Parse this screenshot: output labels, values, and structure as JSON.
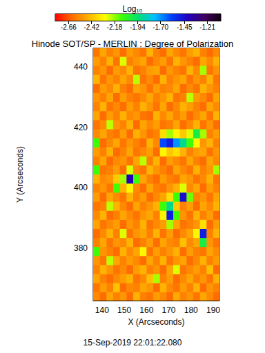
{
  "chart_data": {
    "type": "heatmap",
    "title": "Hinode SOT/SP - MERLIN : Degree of Polarization",
    "x_label": "X (Arcseconds)",
    "y_label": "Y (Arcseconds)",
    "annotation": "15-Sep-2019 22:01:22.080",
    "xlim": [
      136,
      192.8
    ],
    "ylim": [
      362.6,
      446.2
    ],
    "xticks": [
      140,
      150,
      160,
      170,
      180,
      190
    ],
    "yticks": [
      380,
      400,
      420,
      440
    ],
    "x": [
      137.5,
      140.5,
      143.5,
      146.5,
      149.5,
      152.5,
      155.5,
      158.5,
      161.5,
      164.5,
      167.5,
      170.5,
      173.5,
      176.5,
      179.5,
      182.5,
      185.5,
      188.5,
      191.5
    ],
    "y": [
      364,
      367,
      370,
      373,
      376,
      379,
      382,
      385,
      388,
      391,
      394,
      397,
      400,
      403,
      406,
      409,
      412,
      415,
      418,
      421,
      424,
      427,
      430,
      433,
      436,
      439,
      442,
      445
    ],
    "values": [
      [
        -2.55,
        -2.62,
        -2.48,
        -2.57,
        -2.52,
        -2.62,
        -2.45,
        -2.57,
        -2.6,
        -2.5,
        -2.55,
        -2.62,
        -2.47,
        -2.57,
        -2.52,
        -2.6,
        -2.48,
        -2.55,
        -2.62
      ],
      [
        -2.6,
        -2.5,
        -2.57,
        -2.42,
        -2.62,
        -2.55,
        -2.57,
        -2.48,
        -2.52,
        -2.62,
        -2.45,
        -2.55,
        -2.6,
        -2.5,
        -2.57,
        -2.45,
        -2.62,
        -2.52,
        -2.57
      ],
      [
        -2.48,
        -2.57,
        -2.62,
        -2.55,
        -2.5,
        -2.45,
        -2.6,
        -2.55,
        -2.42,
        -2.2,
        -2.57,
        -2.5,
        -2.62,
        -2.55,
        -2.48,
        -2.57,
        -2.52,
        -2.6,
        -2.45
      ],
      [
        -2.57,
        -2.45,
        -2.52,
        -2.6,
        -2.55,
        -2.62,
        -2.5,
        -2.45,
        -2.57,
        -2.52,
        -2.62,
        -2.48,
        -2.25,
        -2.6,
        -2.55,
        -2.5,
        -2.57,
        -2.42,
        -2.62
      ],
      [
        -2.52,
        -2.6,
        -2.22,
        -2.48,
        -2.57,
        -2.5,
        -2.55,
        -2.62,
        -2.48,
        -2.57,
        -2.45,
        -2.6,
        -2.52,
        -2.48,
        -2.62,
        -2.55,
        -2.45,
        -2.57,
        -2.5
      ],
      [
        -2.1,
        -2.52,
        -2.57,
        -2.62,
        -2.45,
        -2.55,
        -2.48,
        -2.3,
        -2.6,
        -2.5,
        -2.57,
        -2.52,
        -2.45,
        -2.62,
        -2.5,
        -2.57,
        -2.6,
        -2.48,
        -2.55
      ],
      [
        -2.57,
        -2.48,
        -2.6,
        -2.52,
        -2.55,
        -2.45,
        -2.62,
        -2.57,
        -2.5,
        -2.62,
        -2.48,
        -2.55,
        -2.57,
        -2.42,
        -2.55,
        -2.48,
        -2.0,
        -2.52,
        -2.6
      ],
      [
        -2.62,
        -2.55,
        -2.45,
        -2.57,
        -2.25,
        -2.6,
        -2.52,
        -2.48,
        -2.57,
        -2.45,
        -2.6,
        -2.5,
        -2.62,
        -2.55,
        -2.48,
        -2.3,
        -1.5,
        -2.57,
        -2.45
      ],
      [
        -2.48,
        -2.6,
        -2.55,
        -2.5,
        -2.62,
        -2.52,
        -2.57,
        -2.45,
        -2.6,
        -2.55,
        -2.5,
        -2.2,
        -2.48,
        -2.6,
        -2.57,
        -2.52,
        -2.35,
        -2.62,
        -2.5
      ],
      [
        -2.55,
        -2.45,
        -2.62,
        -2.57,
        -2.48,
        -2.55,
        -2.6,
        -2.52,
        -2.48,
        -2.57,
        -2.3,
        -1.5,
        -2.1,
        -2.52,
        -2.6,
        -2.45,
        -2.57,
        -2.5,
        -2.62
      ],
      [
        -2.6,
        -2.57,
        -2.22,
        -2.45,
        -2.55,
        -2.62,
        -2.48,
        -2.57,
        -2.52,
        -2.45,
        -2.1,
        -1.9,
        -2.4,
        -2.57,
        -2.5,
        -2.62,
        -2.48,
        -2.55,
        -2.45
      ],
      [
        -2.5,
        -2.62,
        -2.48,
        -2.55,
        -2.6,
        -2.45,
        -2.57,
        -2.5,
        -2.62,
        -2.55,
        -2.48,
        -2.35,
        -2.1,
        -1.45,
        -2.15,
        -2.57,
        -2.52,
        -2.6,
        -2.48
      ],
      [
        -2.57,
        -2.52,
        -2.6,
        -2.1,
        -2.45,
        -2.3,
        -2.55,
        -2.62,
        -2.48,
        -2.57,
        -2.6,
        -2.52,
        -2.45,
        -2.25,
        -2.55,
        -2.48,
        -2.62,
        -2.5,
        -2.57
      ],
      [
        -2.45,
        -2.55,
        -2.52,
        -2.4,
        -2.2,
        -1.4,
        -2.1,
        -2.48,
        -2.57,
        -2.62,
        -2.5,
        -2.57,
        -2.6,
        -2.48,
        -2.52,
        -2.6,
        -2.55,
        -2.45,
        -2.6
      ],
      [
        -2.1,
        -2.6,
        -2.57,
        -2.5,
        -2.62,
        -2.25,
        -2.55,
        -2.6,
        -2.45,
        -2.52,
        -2.57,
        -2.62,
        -2.48,
        -2.55,
        -2.6,
        -2.45,
        -2.57,
        -2.52,
        -2.2
      ],
      [
        -2.57,
        -2.48,
        -2.62,
        -2.55,
        -2.52,
        -2.6,
        -2.48,
        -2.22,
        -2.57,
        -2.45,
        -2.62,
        -2.5,
        -2.55,
        -2.6,
        -2.48,
        -2.57,
        -2.62,
        -2.48,
        -2.55
      ],
      [
        -2.5,
        -2.57,
        -2.45,
        -2.62,
        -2.57,
        -2.48,
        -2.6,
        -2.55,
        -2.5,
        -2.62,
        -2.3,
        -2.4,
        -2.35,
        -2.45,
        -2.57,
        -2.5,
        -2.48,
        -2.6,
        -2.52
      ],
      [
        -2.1,
        -2.62,
        -2.55,
        -2.48,
        -2.6,
        -2.52,
        -2.57,
        -2.62,
        -2.45,
        -2.55,
        -1.6,
        -1.5,
        -1.7,
        -1.9,
        -2.1,
        -2.3,
        -2.52,
        -2.45,
        -2.57
      ],
      [
        -2.55,
        -2.48,
        -2.57,
        -2.6,
        -2.5,
        -2.62,
        -2.45,
        -2.52,
        -2.6,
        -2.57,
        -2.35,
        -2.2,
        -2.3,
        -2.4,
        -2.25,
        -2.0,
        -2.2,
        -2.57,
        -2.5
      ],
      [
        -2.6,
        -2.55,
        -2.22,
        -2.52,
        -2.57,
        -2.45,
        -2.62,
        -2.48,
        -2.55,
        -2.5,
        -2.6,
        -2.57,
        -2.48,
        -2.62,
        -2.55,
        -2.45,
        -2.6,
        -2.52,
        -2.62
      ],
      [
        -2.48,
        -2.62,
        -2.5,
        -2.57,
        -2.45,
        -2.55,
        -2.52,
        -2.6,
        -2.62,
        -2.45,
        -2.55,
        -2.48,
        -2.57,
        -2.5,
        -2.62,
        -2.55,
        -2.48,
        -2.6,
        -2.45
      ],
      [
        -2.57,
        -2.45,
        -2.6,
        -2.55,
        -2.62,
        -2.5,
        -2.57,
        -2.45,
        -2.52,
        -2.6,
        -2.48,
        -2.62,
        -2.55,
        -2.45,
        -2.5,
        -2.57,
        -2.62,
        -2.48,
        -2.55
      ],
      [
        -2.52,
        -2.57,
        -2.48,
        -2.62,
        -2.5,
        -2.57,
        -2.6,
        -2.55,
        -2.48,
        -2.57,
        -2.52,
        -2.45,
        -2.6,
        -2.57,
        -2.22,
        -2.5,
        -2.55,
        -2.62,
        -2.48
      ],
      [
        -2.62,
        -2.5,
        -2.55,
        -2.45,
        -2.57,
        -2.62,
        -2.48,
        -2.52,
        -2.6,
        -2.5,
        -2.57,
        -2.55,
        -2.48,
        -2.62,
        -2.55,
        -2.6,
        -2.45,
        -2.52,
        -2.57
      ],
      [
        -2.45,
        -2.6,
        -2.52,
        -2.57,
        -2.48,
        -2.55,
        -2.22,
        -2.6,
        -2.55,
        -2.62,
        -2.45,
        -2.57,
        -2.52,
        -2.48,
        -2.6,
        -2.52,
        -2.57,
        -2.45,
        -2.6
      ],
      [
        -2.57,
        -2.52,
        -2.62,
        -2.5,
        -2.55,
        -2.45,
        -2.6,
        -2.57,
        -2.5,
        -2.48,
        -2.62,
        -2.52,
        -2.57,
        -2.6,
        -2.45,
        -2.55,
        -2.2,
        -2.6,
        -2.52
      ],
      [
        -2.5,
        -2.57,
        -2.45,
        -2.6,
        -2.25,
        -2.57,
        -2.52,
        -2.48,
        -2.62,
        -2.55,
        -2.5,
        -2.6,
        -2.45,
        -2.52,
        -2.57,
        -2.62,
        -2.48,
        -2.55,
        -2.45
      ],
      [
        -2.6,
        -2.48,
        -2.57,
        -2.52,
        -2.62,
        -2.5,
        -2.55,
        -2.6,
        -2.45,
        -2.57,
        -2.62,
        -2.48,
        -2.55,
        -2.6,
        -2.5,
        -2.45,
        -2.57,
        -2.62,
        -2.55
      ]
    ],
    "colorbar": {
      "label": "Log₁₀",
      "range": [
        -2.8,
        -1.07
      ],
      "ticks": [
        -2.66,
        -2.42,
        -2.18,
        -1.94,
        {
          "value": -1.7,
          "label": "-1.70"
        },
        -1.45,
        -1.21
      ]
    }
  }
}
